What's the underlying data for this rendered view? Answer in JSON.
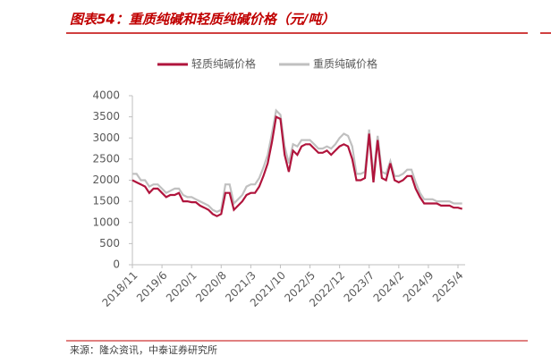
{
  "chart_data": {
    "type": "line",
    "title": "图表54：重质纯碱和轻质纯碱价格（元/吨）",
    "source": "来源：隆众资讯，中泰证券研究所",
    "categories": [
      "2018/11",
      null,
      null,
      null,
      null,
      null,
      null,
      "2019/6",
      null,
      null,
      null,
      null,
      null,
      null,
      "2020/1",
      null,
      null,
      null,
      null,
      null,
      null,
      "2020/8",
      null,
      null,
      null,
      null,
      null,
      null,
      "2021/3",
      null,
      null,
      null,
      null,
      null,
      null,
      "2021/10",
      null,
      null,
      null,
      null,
      null,
      null,
      "2022/5",
      null,
      null,
      null,
      null,
      null,
      null,
      "2022/12",
      null,
      null,
      null,
      null,
      null,
      null,
      "2023/7",
      null,
      null,
      null,
      null,
      null,
      null,
      "2024/2",
      null,
      null,
      null,
      null,
      null,
      null,
      "2024/9",
      null,
      null,
      null,
      null,
      null,
      null,
      "2025/4",
      null
    ],
    "series": [
      {
        "name": "轻质纯碱价格",
        "color": "#b0143c",
        "values": [
          2000,
          1950,
          1900,
          1850,
          1700,
          1800,
          1800,
          1700,
          1600,
          1650,
          1650,
          1700,
          1500,
          1500,
          1480,
          1480,
          1400,
          1350,
          1300,
          1200,
          1150,
          1200,
          1700,
          1700,
          1300,
          1400,
          1500,
          1650,
          1700,
          1700,
          1850,
          2100,
          2400,
          2900,
          3500,
          3450,
          2600,
          2200,
          2700,
          2600,
          2800,
          2850,
          2850,
          2750,
          2650,
          2650,
          2700,
          2600,
          2700,
          2800,
          2850,
          2800,
          2500,
          2000,
          2000,
          2050,
          3100,
          1950,
          2950,
          2050,
          2000,
          2400,
          2000,
          1950,
          2000,
          2100,
          2100,
          1800,
          1600,
          1450,
          1450,
          1450,
          1450,
          1400,
          1400,
          1400,
          1350,
          1350,
          1320
        ]
      },
      {
        "name": "重质纯碱价格",
        "color": "#c0c0c0",
        "values": [
          2150,
          2150,
          2000,
          2000,
          1850,
          1900,
          1900,
          1800,
          1700,
          1750,
          1800,
          1800,
          1650,
          1600,
          1600,
          1550,
          1500,
          1450,
          1400,
          1300,
          1250,
          1300,
          1900,
          1900,
          1450,
          1550,
          1650,
          1850,
          1900,
          1900,
          2050,
          2300,
          2600,
          3100,
          3650,
          3550,
          2800,
          2400,
          2850,
          2800,
          2950,
          2950,
          2950,
          2850,
          2750,
          2750,
          2800,
          2750,
          2850,
          3000,
          3100,
          3050,
          2800,
          2150,
          2150,
          2200,
          3200,
          2100,
          3050,
          2200,
          2150,
          2450,
          2100,
          2100,
          2150,
          2250,
          2250,
          1950,
          1700,
          1550,
          1550,
          1550,
          1500,
          1500,
          1500,
          1500,
          1450,
          1450,
          1450
        ]
      }
    ],
    "ylim": [
      0,
      4000
    ],
    "yticks": [
      0,
      500,
      1000,
      1500,
      2000,
      2500,
      3000,
      3500,
      4000
    ]
  }
}
